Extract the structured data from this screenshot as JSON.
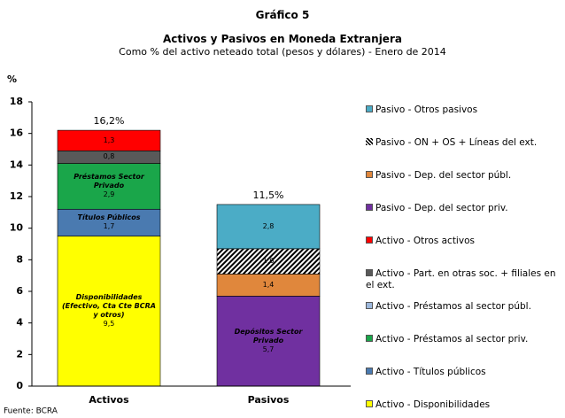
{
  "chart_data": {
    "type": "stacked_bar",
    "title": "Gráfico 5",
    "subtitle": "Activos y Pasivos en Moneda Extranjera",
    "description": "Como % del activo neteado total (pesos y dólares) - Enero de 2014",
    "y_label": "%",
    "source": "Fuente: BCRA",
    "categories": [
      "Activos",
      "Pasivos"
    ],
    "ylim": [
      0,
      18
    ],
    "yticks": [
      0,
      2,
      4,
      6,
      8,
      10,
      12,
      14,
      16,
      18
    ],
    "totals": [
      16.2,
      11.5
    ],
    "total_labels": [
      "16,2%",
      "11,5%"
    ],
    "series": [
      {
        "name": "Activo - Disponibilidades",
        "color": "#ffff00",
        "values": [
          9.5,
          null
        ],
        "value_labels": [
          "9,5",
          null
        ],
        "segment_label": "Disponibilidades (Efectivo, Cta Cte BCRA y otros)"
      },
      {
        "name": "Activo - Títulos públicos",
        "color": "#4a7ab0",
        "values": [
          1.7,
          null
        ],
        "value_labels": [
          "1,7",
          null
        ],
        "segment_label": "Títulos Públicos"
      },
      {
        "name": "Activo - Préstamos al sector priv.",
        "color": "#1aa64a",
        "values": [
          2.9,
          null
        ],
        "value_labels": [
          "2,9",
          null
        ],
        "segment_label": "Préstamos Sector Privado"
      },
      {
        "name": "Activo - Préstamos al sector públ.",
        "color": "#9db8dc",
        "values": [
          null,
          null
        ]
      },
      {
        "name": "Activo - Part. en otras soc. + filiales en el ext.",
        "color": "#595959",
        "values": [
          0.8,
          null
        ],
        "value_labels": [
          "0,8",
          null
        ]
      },
      {
        "name": "Activo - Otros activos",
        "color": "#ff0000",
        "values": [
          1.3,
          null
        ],
        "value_labels": [
          "1,3",
          null
        ]
      },
      {
        "name": "Pasivo - Dep. del sector priv.",
        "color": "#7030a0",
        "values": [
          null,
          5.7
        ],
        "value_labels": [
          null,
          "5,7"
        ],
        "segment_label": "Depósitos Sector Privado"
      },
      {
        "name": "Pasivo - Dep. del sector públ.",
        "color": "#e0873c",
        "values": [
          null,
          1.4
        ],
        "value_labels": [
          null,
          "1,4"
        ]
      },
      {
        "name": "Pasivo - ON + OS + Líneas del ext.",
        "color": "#000000",
        "hatch": true,
        "values": [
          null,
          1.6
        ],
        "value_labels": [
          null,
          "1,6"
        ]
      },
      {
        "name": "Pasivo - Otros pasivos",
        "color": "#4bacc6",
        "values": [
          null,
          2.8
        ],
        "value_labels": [
          null,
          "2,8"
        ]
      }
    ]
  }
}
